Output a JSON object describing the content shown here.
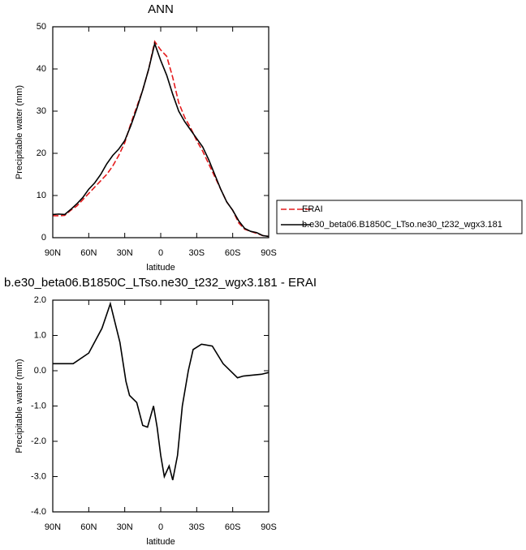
{
  "chart_data": [
    {
      "type": "line",
      "title": "ANN",
      "x_label": "latitude",
      "y_label": "Precipitable water (mm)",
      "x": [
        90,
        85,
        80,
        75,
        70,
        65,
        60,
        55,
        50,
        45,
        40,
        35,
        30,
        25,
        20,
        15,
        10,
        5,
        0,
        -5,
        -10,
        -15,
        -20,
        -25,
        -30,
        -35,
        -40,
        -45,
        -50,
        -55,
        -60,
        -65,
        -70,
        -75,
        -80,
        -85,
        -90
      ],
      "series": [
        {
          "name": "ERAI",
          "color": "#e41a1c",
          "dash": "dashed",
          "values": [
            5.2,
            5.2,
            5.3,
            6.5,
            7.5,
            9,
            10.5,
            12,
            13.5,
            15,
            17,
            19.5,
            22.5,
            27,
            31,
            35,
            40,
            46.5,
            44.5,
            43,
            38,
            32,
            28.5,
            26,
            23,
            20.5,
            17.5,
            14.5,
            11.5,
            8.5,
            6.5,
            3.5,
            2,
            1.5,
            1,
            0.5,
            0.3
          ]
        },
        {
          "name": "b.e30_beta06.B1850C_LTso.ne30_t232_wgx3.181",
          "color": "#000000",
          "dash": "solid",
          "values": [
            5.5,
            5.6,
            5.5,
            6.7,
            8,
            9.5,
            11.5,
            13,
            15,
            17.5,
            19.5,
            21,
            23,
            26.5,
            30.5,
            35,
            40,
            46,
            42,
            38.5,
            34,
            30,
            27.5,
            25.5,
            23.5,
            21.5,
            18.5,
            15,
            11.5,
            8.5,
            6.5,
            4,
            2.2,
            1.5,
            1.2,
            0.5,
            0.3
          ]
        }
      ],
      "xlim": [
        90,
        -90
      ],
      "xticks": [
        {
          "value": 90,
          "label": "90N"
        },
        {
          "value": 60,
          "label": "60N"
        },
        {
          "value": 30,
          "label": "30N"
        },
        0,
        {
          "value": -30,
          "label": "30S"
        },
        {
          "value": -60,
          "label": "60S"
        },
        {
          "value": -90,
          "label": "90S"
        }
      ],
      "ylim": [
        0,
        50
      ],
      "yticks": [
        0,
        10,
        20,
        30,
        40,
        50
      ],
      "grid": false,
      "legend": "right"
    },
    {
      "type": "line",
      "title": "b.e30_beta06.B1850C_LTso.ne30_t232_wgx3.181 - ERAI",
      "x_label": "latitude",
      "y_label": "Precipitable water (mm)",
      "x": [
        90,
        73,
        60,
        49,
        42,
        34,
        29,
        26,
        20,
        15,
        11,
        6,
        3,
        0,
        -3,
        -7,
        -10,
        -14,
        -18,
        -23,
        -27,
        -34,
        -43,
        -52,
        -64,
        -69,
        -84,
        -90
      ],
      "series": [
        {
          "name": null,
          "color": "#000000",
          "dash": "solid",
          "values": [
            0.2,
            0.2,
            0.5,
            1.2,
            1.9,
            0.8,
            -0.3,
            -0.7,
            -0.9,
            -1.55,
            -1.6,
            -1.0,
            -1.6,
            -2.4,
            -3.0,
            -2.7,
            -3.1,
            -2.4,
            -1.0,
            0,
            0.6,
            0.75,
            0.7,
            0.2,
            -0.2,
            -0.15,
            -0.1,
            -0.05
          ]
        }
      ],
      "xlim": [
        90,
        -90
      ],
      "xticks": [
        {
          "value": 90,
          "label": "90N"
        },
        {
          "value": 60,
          "label": "60N"
        },
        {
          "value": 30,
          "label": "30N"
        },
        0,
        {
          "value": -30,
          "label": "30S"
        },
        {
          "value": -60,
          "label": "60S"
        },
        {
          "value": -90,
          "label": "90S"
        }
      ],
      "ylim": [
        -4,
        2
      ],
      "yticks": [
        {
          "value": -4,
          "label": "-4.0"
        },
        {
          "value": -3,
          "label": "-3.0"
        },
        {
          "value": -2,
          "label": "-2.0"
        },
        {
          "value": -1,
          "label": "-1.0"
        },
        {
          "value": 0,
          "label": "0.0"
        },
        {
          "value": 1,
          "label": "1.0"
        },
        {
          "value": 2,
          "label": "2.0"
        }
      ],
      "grid": false
    }
  ]
}
